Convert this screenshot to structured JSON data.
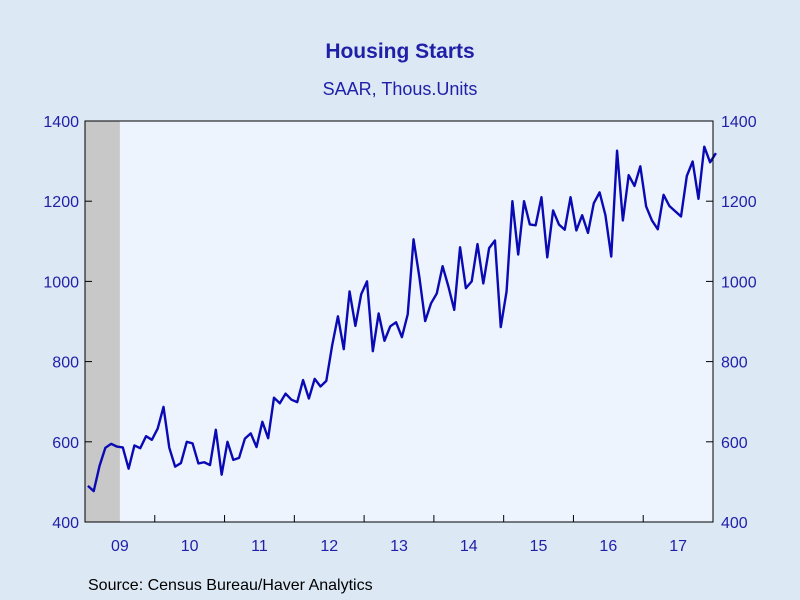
{
  "chart_data": {
    "type": "line",
    "title": "Housing Starts",
    "subtitle": "SAAR, Thous.Units",
    "source": "Source:  Census Bureau/Haver Analytics",
    "y_axis": {
      "ylim": [
        400,
        1400
      ],
      "ticks": [
        "400",
        "600",
        "800",
        "1000",
        "1200",
        "1400"
      ],
      "left_and_right": true
    },
    "x_axis": {
      "start_year": 2009,
      "end_year": 2017,
      "tick_labels": [
        "09",
        "10",
        "11",
        "12",
        "13",
        "14",
        "15",
        "16",
        "17"
      ]
    },
    "grid": false,
    "shaded_recession": {
      "from": "2009-01",
      "to": "2009-06"
    },
    "colors": {
      "line": "#0a0ab4",
      "plot_background": "#eef4fe",
      "page_background": "#dce8f4",
      "recession": "#c8c8c8",
      "text": "#1f1fa8"
    },
    "series": [
      {
        "start": "2009-01",
        "frequency": "monthly",
        "values": [
          490,
          477,
          540,
          585,
          595,
          588,
          586,
          533,
          591,
          584,
          614,
          605,
          633,
          687,
          585,
          538,
          547,
          600,
          596,
          546,
          549,
          542,
          630,
          518,
          600,
          555,
          560,
          608,
          621,
          587,
          650,
          609,
          710,
          696,
          720,
          705,
          699,
          754,
          708,
          757,
          738,
          752,
          840,
          913,
          831,
          975,
          889,
          968,
          1000,
          826,
          920,
          852,
          888,
          898,
          861,
          918,
          1105,
          1011,
          901,
          945,
          970,
          1038,
          987,
          929,
          1085,
          983,
          1000,
          1093,
          995,
          1083,
          1102,
          886,
          975,
          1200,
          1067,
          1200,
          1142,
          1140,
          1210,
          1060,
          1177,
          1142,
          1129,
          1210,
          1127,
          1165,
          1121,
          1195,
          1222,
          1165,
          1062,
          1326,
          1152,
          1265,
          1238,
          1287,
          1187,
          1152,
          1130,
          1216,
          1188,
          1175,
          1162,
          1263,
          1299,
          1206,
          1336,
          1297,
          1320
        ]
      }
    ]
  }
}
